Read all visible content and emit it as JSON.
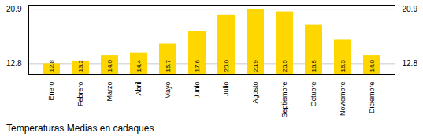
{
  "chart_data": {
    "type": "bar",
    "title": "Temperaturas Medias en cadaques",
    "categories": [
      "Enero",
      "Febrero",
      "Marzo",
      "Abril",
      "Mayo",
      "Junio",
      "Julio",
      "Agosto",
      "Septiembre",
      "Octubre",
      "Noviembre",
      "Diciembre"
    ],
    "values": [
      12.8,
      13.2,
      14.0,
      14.4,
      15.7,
      17.6,
      20.0,
      20.9,
      20.5,
      18.5,
      16.3,
      14.0
    ],
    "value_labels": [
      "12.8",
      "13.2",
      "14.0",
      "14.4",
      "15.7",
      "17.6",
      "20.0",
      "20.9",
      "20.5",
      "18.5",
      "16.3",
      "14.0"
    ],
    "color": "#FFD700",
    "ylim": [
      11.2,
      21.5
    ],
    "yticks": [
      12.8,
      20.9
    ],
    "grid": true,
    "data_labels": true
  }
}
